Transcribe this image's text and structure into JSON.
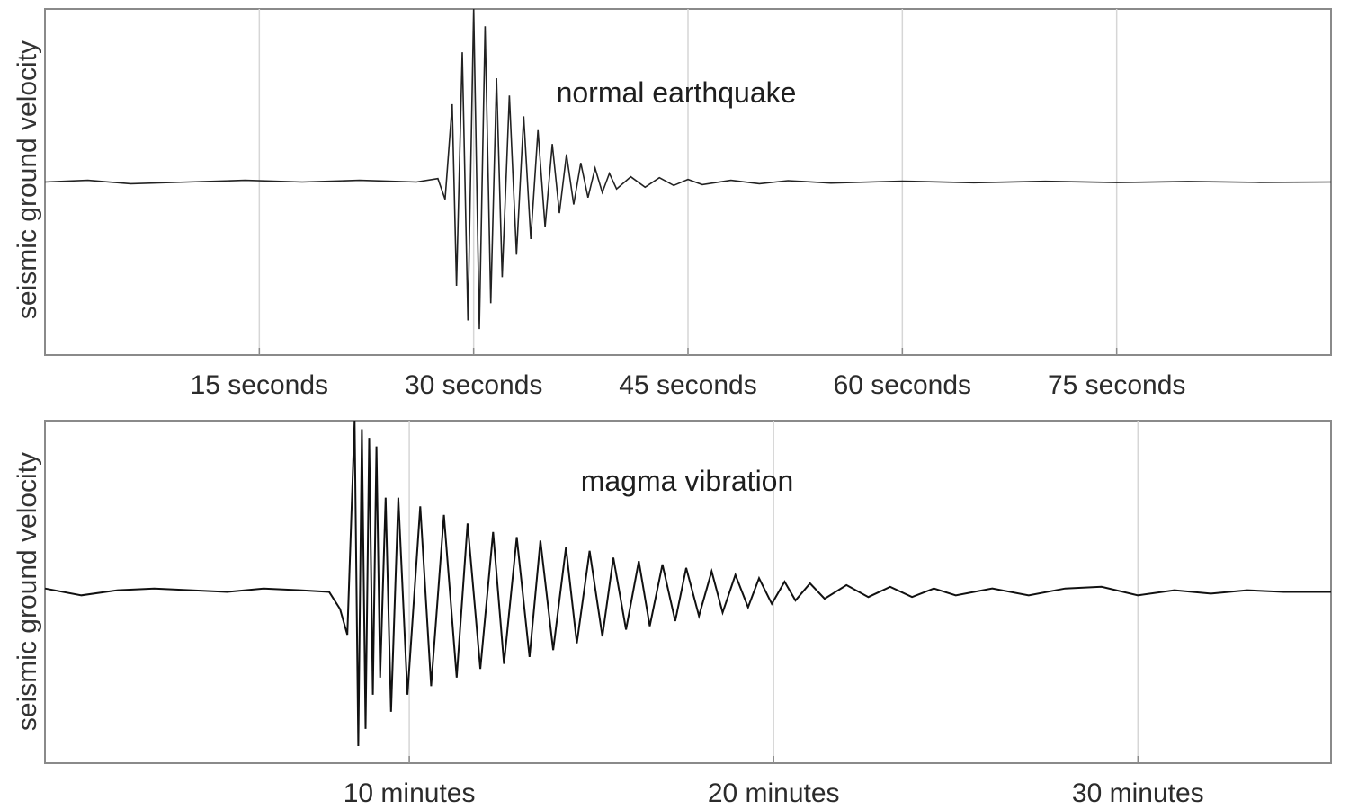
{
  "chart_data": [
    {
      "type": "line",
      "title": "",
      "annotation": "normal earthquake",
      "ylabel": "seismic ground velocity",
      "xlabel": "",
      "x_unit": "seconds",
      "xlim": [
        0,
        90
      ],
      "ylim": [
        -1,
        1
      ],
      "grid": true,
      "ticks": [
        {
          "value": 15,
          "label": "15 seconds"
        },
        {
          "value": 30,
          "label": "30 seconds"
        },
        {
          "value": 45,
          "label": "45 seconds"
        },
        {
          "value": 60,
          "label": "60 seconds"
        },
        {
          "value": 75,
          "label": "75 seconds"
        }
      ],
      "series": [
        {
          "line_color": "#222222",
          "x": [
            0,
            3,
            6,
            10,
            14,
            18,
            22,
            26,
            27.5,
            28,
            28.5,
            28.8,
            29.2,
            29.6,
            30,
            30.4,
            30.8,
            31.2,
            31.6,
            32,
            32.5,
            33,
            33.5,
            34,
            34.5,
            35,
            35.5,
            36,
            36.5,
            37,
            37.5,
            38,
            38.5,
            39,
            39.5,
            40,
            41,
            42,
            43,
            44,
            45,
            46,
            48,
            50,
            52,
            55,
            60,
            65,
            70,
            75,
            80,
            85,
            90
          ],
          "y": [
            0,
            0.01,
            -0.01,
            0,
            0.01,
            0,
            0.01,
            0,
            0.02,
            -0.1,
            0.45,
            -0.6,
            0.75,
            -0.8,
            1.0,
            -0.85,
            0.9,
            -0.7,
            0.6,
            -0.55,
            0.5,
            -0.42,
            0.38,
            -0.33,
            0.3,
            -0.26,
            0.22,
            -0.18,
            0.16,
            -0.13,
            0.11,
            -0.09,
            0.08,
            -0.06,
            0.05,
            -0.04,
            0.03,
            -0.03,
            0.025,
            -0.02,
            0.015,
            -0.015,
            0.01,
            -0.01,
            0.008,
            -0.006,
            0.005,
            -0.004,
            0.004,
            -0.003,
            0.003,
            -0.002,
            0
          ]
        }
      ]
    },
    {
      "type": "line",
      "title": "",
      "annotation": "magma vibration",
      "ylabel": "seismic ground velocity",
      "xlabel": "",
      "x_unit": "minutes",
      "xlim": [
        0,
        35.3
      ],
      "ylim": [
        -1,
        1
      ],
      "grid": true,
      "ticks": [
        {
          "value": 10,
          "label": "10 minutes"
        },
        {
          "value": 20,
          "label": "20 minutes"
        },
        {
          "value": 30,
          "label": "30 minutes"
        }
      ],
      "series": [
        {
          "line_color": "#111111",
          "x": [
            0,
            1,
            2,
            3,
            4,
            5,
            6,
            7,
            7.8,
            8.1,
            8.3,
            8.5,
            8.6,
            8.7,
            8.8,
            8.9,
            9.0,
            9.1,
            9.2,
            9.35,
            9.5,
            9.7,
            9.95,
            10.3,
            10.6,
            10.95,
            11.3,
            11.6,
            11.95,
            12.3,
            12.6,
            12.95,
            13.3,
            13.6,
            13.95,
            14.3,
            14.6,
            14.95,
            15.3,
            15.6,
            15.95,
            16.3,
            16.6,
            16.95,
            17.3,
            17.6,
            17.95,
            18.3,
            18.6,
            18.95,
            19.3,
            19.6,
            19.95,
            20.3,
            20.6,
            21.0,
            21.4,
            22.0,
            22.6,
            23.2,
            23.8,
            24.4,
            25.0,
            26.0,
            27.0,
            28.0,
            29.0,
            30.0,
            31.0,
            32.0,
            33.0,
            34.0,
            35.3
          ],
          "y": [
            0.02,
            -0.02,
            0.01,
            0.02,
            0.01,
            0.0,
            0.02,
            0.01,
            0.0,
            -0.1,
            -0.25,
            1.0,
            -0.9,
            0.95,
            -0.8,
            0.9,
            -0.6,
            0.85,
            -0.5,
            0.55,
            -0.7,
            0.55,
            -0.6,
            0.5,
            -0.55,
            0.45,
            -0.5,
            0.4,
            -0.45,
            0.35,
            -0.42,
            0.32,
            -0.38,
            0.3,
            -0.34,
            0.26,
            -0.3,
            0.24,
            -0.26,
            0.2,
            -0.22,
            0.18,
            -0.2,
            0.16,
            -0.17,
            0.14,
            -0.14,
            0.12,
            -0.12,
            0.1,
            -0.09,
            0.08,
            -0.07,
            0.06,
            -0.05,
            0.05,
            -0.04,
            0.04,
            -0.03,
            0.03,
            -0.03,
            0.02,
            -0.02,
            0.02,
            -0.02,
            0.02,
            0.03,
            -0.02,
            0.01,
            -0.01,
            0.01,
            0.0,
            0.0
          ]
        }
      ]
    }
  ]
}
